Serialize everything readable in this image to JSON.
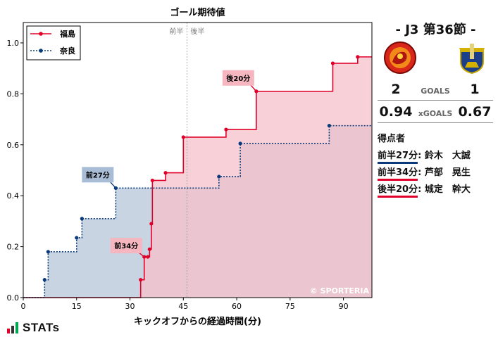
{
  "chart_data": {
    "type": "line",
    "title": "ゴール期待値",
    "xlabel": "キックオフからの経過時間(分)",
    "ylabel": "",
    "xlim": [
      0,
      98
    ],
    "ylim": [
      0,
      1.08
    ],
    "xticks": [
      0,
      15,
      30,
      45,
      60,
      75,
      90
    ],
    "yticks": [
      0.0,
      0.2,
      0.4,
      0.6,
      0.8,
      1.0
    ],
    "half_labels": [
      "前半",
      "後半"
    ],
    "halftime_x": 46,
    "legend_position": "top-left",
    "watermark": "© SPORTERIA",
    "series": [
      {
        "name": "福島",
        "color": "#e0002a",
        "fill": "#f5c0c9",
        "x": [
          33,
          34,
          35,
          35.5,
          36,
          36.3,
          40,
          45,
          57,
          65.5,
          87,
          94,
          98
        ],
        "y": [
          0.07,
          0.16,
          0.16,
          0.19,
          0.29,
          0.46,
          0.49,
          0.63,
          0.66,
          0.81,
          0.92,
          0.945,
          0.945
        ],
        "annotations": [
          {
            "label": "前34分",
            "x": 34,
            "y": 0.16
          },
          {
            "label": "後20分",
            "x": 65.5,
            "y": 0.81
          }
        ]
      },
      {
        "name": "奈良",
        "color": "#0b3a7a",
        "fill": "#c9d4e3",
        "x": [
          6,
          7,
          15,
          16.5,
          26,
          55,
          61,
          86,
          98
        ],
        "y": [
          0.07,
          0.18,
          0.235,
          0.31,
          0.43,
          0.475,
          0.605,
          0.675,
          0.675
        ],
        "annotations": [
          {
            "label": "前27分",
            "x": 26,
            "y": 0.43
          }
        ]
      }
    ]
  },
  "match": {
    "title": "-  J3 第36節  -",
    "home_crest": "fukushima-crest",
    "away_crest": "nara-crest",
    "home_goals": "2",
    "away_goals": "1",
    "goals_label": "GOALS",
    "home_xg": "0.94",
    "away_xg": "0.67",
    "xg_label": "xGOALS"
  },
  "scorers": {
    "heading": "得点者",
    "items": [
      {
        "time": "前半27分",
        "name": ": 鈴木　大誠",
        "team": "away"
      },
      {
        "time": "前半34分",
        "name": ": 芦部　晃生",
        "team": "home"
      },
      {
        "time": "後半20分",
        "name": ": 城定　幹大",
        "team": "home"
      }
    ]
  },
  "brand": {
    "text": "STATs",
    "bar_colors": [
      "#e0002a",
      "#333333",
      "#00a650"
    ]
  }
}
